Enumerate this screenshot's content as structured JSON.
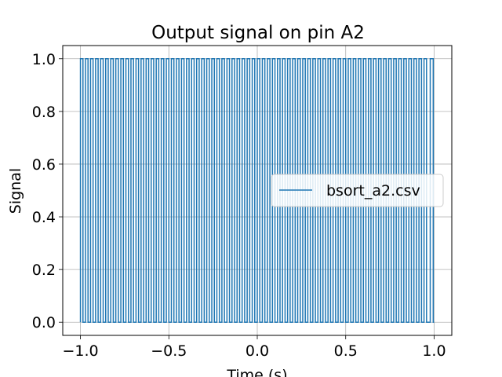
{
  "chart_data": {
    "type": "line",
    "title": "Output signal on pin A2",
    "xlabel": "Time (s)",
    "ylabel": "Signal",
    "xlim": [
      -1.1,
      1.1
    ],
    "ylim": [
      -0.05,
      1.05
    ],
    "x_ticks": [
      -1.0,
      -0.5,
      0.0,
      0.5,
      1.0
    ],
    "x_tick_labels": [
      "−1.0",
      "−0.5",
      "0.0",
      "0.5",
      "1.0"
    ],
    "y_ticks": [
      0.0,
      0.2,
      0.4,
      0.6,
      0.8,
      1.0
    ],
    "y_tick_labels": [
      "0.0",
      "0.2",
      "0.4",
      "0.6",
      "0.8",
      "1.0"
    ],
    "grid": true,
    "legend_position": "center-right",
    "series": [
      {
        "name": "bsort_a2.csv",
        "color": "#1f77b4",
        "signal": "square wave",
        "x_start": -1.0,
        "x_end": 1.0,
        "low": 0.0,
        "high": 1.0,
        "cycles": 70,
        "final_short_cycle_start": 0.978
      }
    ]
  }
}
